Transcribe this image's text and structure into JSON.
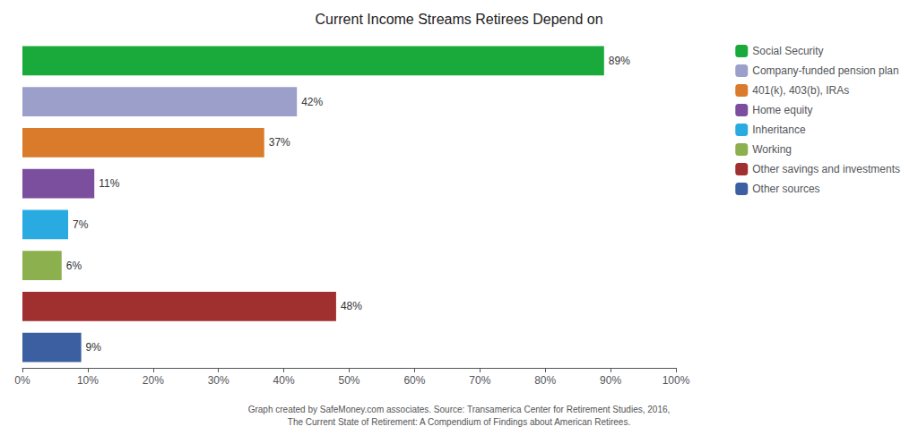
{
  "chart_data": {
    "type": "bar",
    "orientation": "horizontal",
    "title": "Current Income Streams Retirees Depend on",
    "categories": [
      "Social Security",
      "Company-funded pension plan",
      "401(k), 403(b), IRAs",
      "Home equity",
      "Inheritance",
      "Working",
      "Other savings and investments",
      "Other sources"
    ],
    "values": [
      89,
      42,
      37,
      11,
      7,
      6,
      48,
      9
    ],
    "value_labels": [
      "89%",
      "42%",
      "37%",
      "11%",
      "7%",
      "6%",
      "48%",
      "9%"
    ],
    "data_labels": true,
    "colors": [
      "#1aaa3c",
      "#9b9fc9",
      "#d97b2a",
      "#7b4f9e",
      "#29abe2",
      "#8db04e",
      "#a03030",
      "#3b5fa0"
    ],
    "xlim": [
      0,
      100
    ],
    "xticks": [
      {
        "value": 0,
        "label": "0%"
      },
      {
        "value": 10,
        "label": "10%"
      },
      {
        "value": 20,
        "label": "20%"
      },
      {
        "value": 30,
        "label": "30%"
      },
      {
        "value": 40,
        "label": "40%"
      },
      {
        "value": 50,
        "label": "50%"
      },
      {
        "value": 60,
        "label": "60%"
      },
      {
        "value": 70,
        "label": "70%"
      },
      {
        "value": 80,
        "label": "80%"
      },
      {
        "value": 90,
        "label": "90%"
      },
      {
        "value": 100,
        "label": "100%"
      }
    ],
    "tick_labels": "x",
    "grid": false,
    "legend": "upper right",
    "annotations": [
      "Graph created by SafeMoney.com associates. Source: Transamerica Center for Retirement Studies, 2016,",
      "The Current State of Retirement: A Compendium of Findings about American Retirees."
    ]
  }
}
